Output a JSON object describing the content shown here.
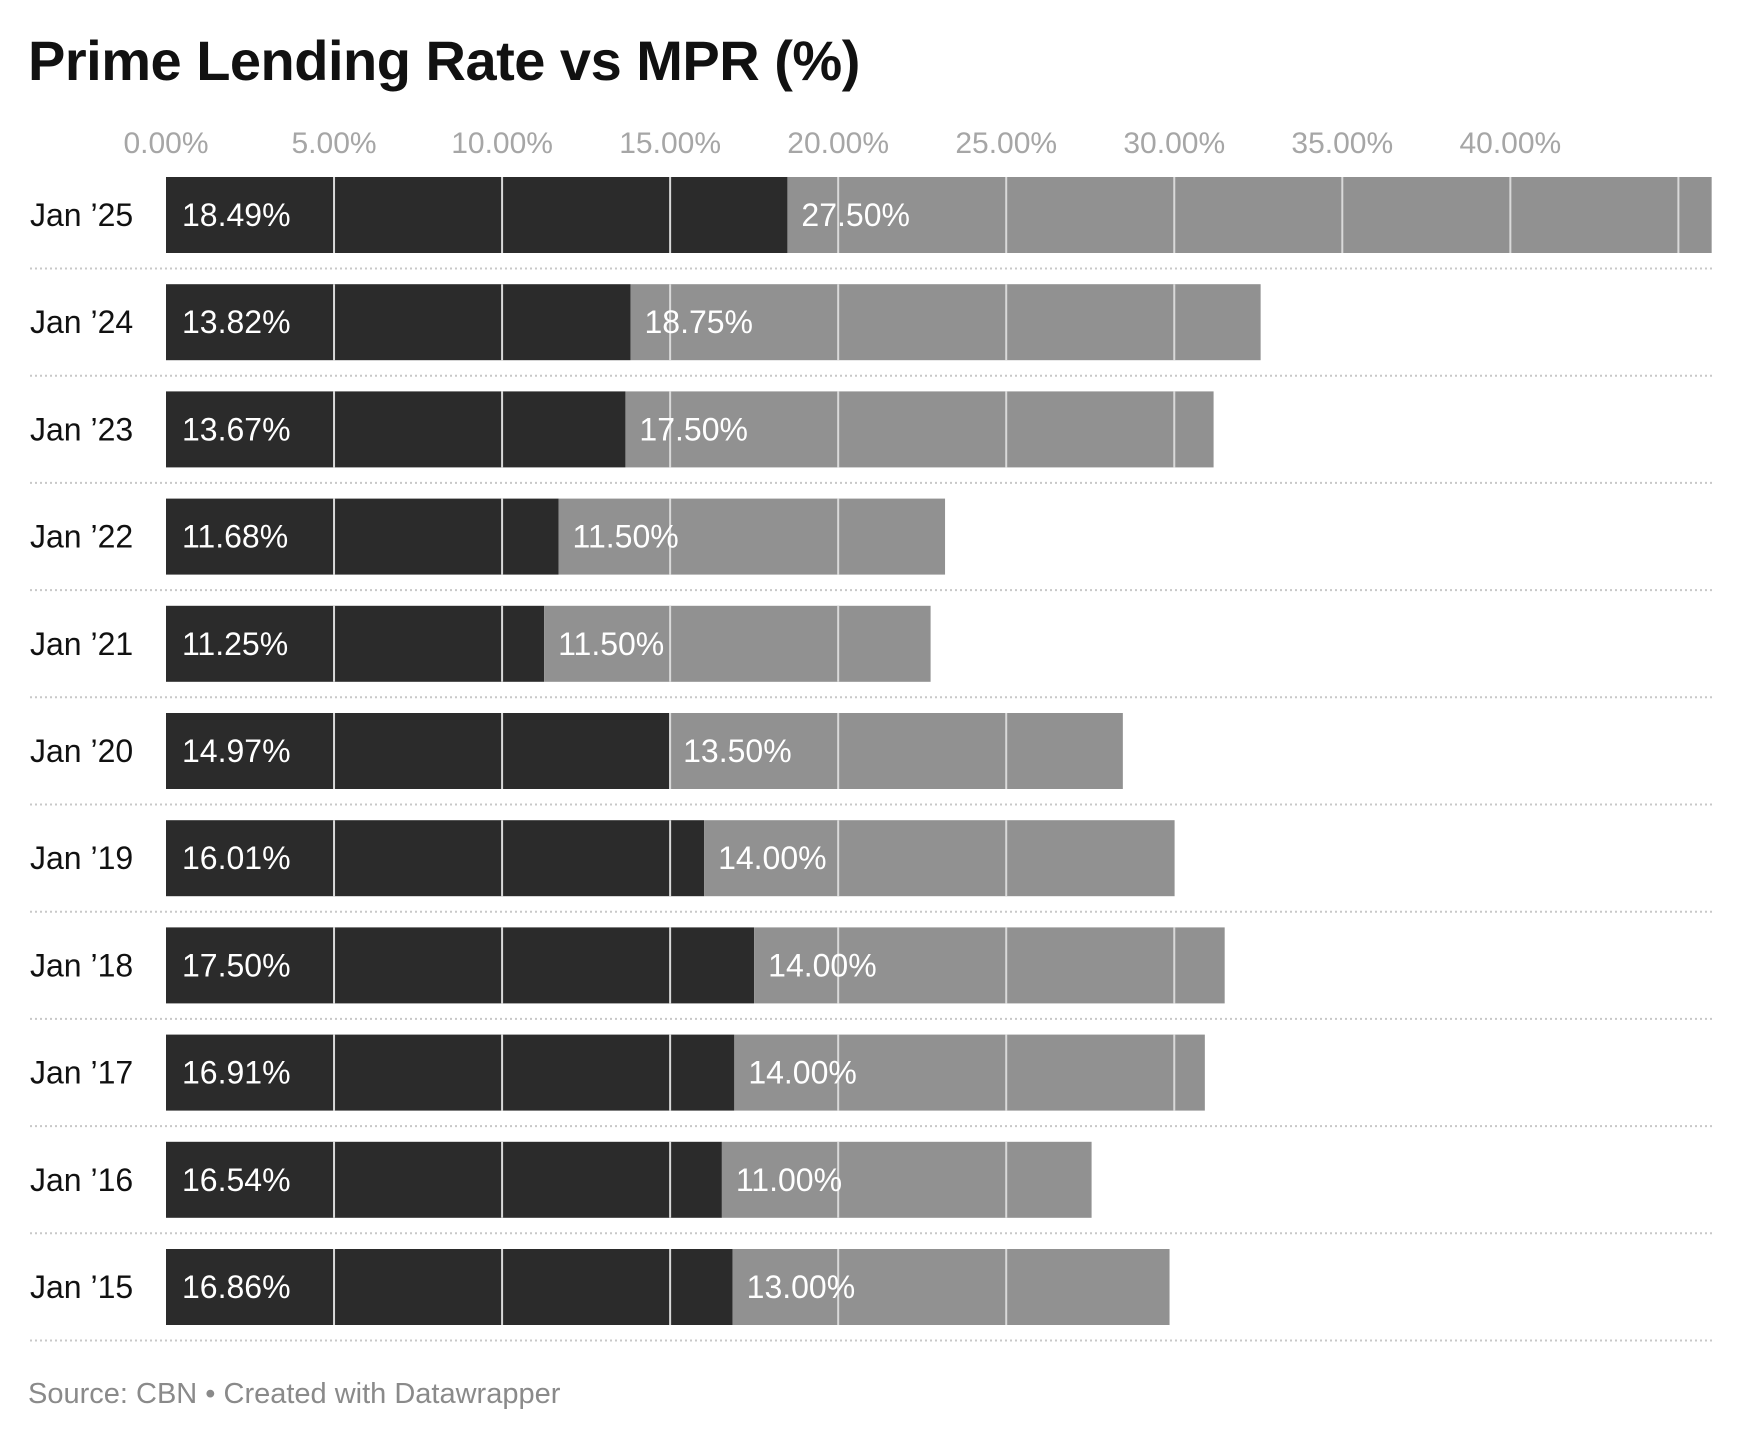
{
  "chart_data": {
    "type": "bar",
    "stacked": true,
    "orientation": "horizontal",
    "title": "Prime Lending Rate vs MPR (%)",
    "source": "Source: CBN • Created with Datawrapper",
    "x_ticks": [
      "0.00%",
      "5.00%",
      "10.00%",
      "15.00%",
      "20.00%",
      "25.00%",
      "30.00%",
      "35.00%",
      "40.00%"
    ],
    "x_tick_values": [
      0,
      5,
      10,
      15,
      20,
      25,
      30,
      35,
      40
    ],
    "xlim": [
      0,
      46
    ],
    "categories": [
      "Jan ’25",
      "Jan ’24",
      "Jan ’23",
      "Jan ’22",
      "Jan ’21",
      "Jan ’20",
      "Jan ’19",
      "Jan ’18",
      "Jan ’17",
      "Jan ’16",
      "Jan ’15"
    ],
    "series": [
      {
        "name": "Prime Lending Rate",
        "color": "#2b2b2b",
        "values": [
          18.49,
          13.82,
          13.67,
          11.68,
          11.25,
          14.97,
          16.01,
          17.5,
          16.91,
          16.54,
          16.86
        ],
        "labels": [
          "18.49%",
          "13.82%",
          "13.67%",
          "11.68%",
          "11.25%",
          "14.97%",
          "16.01%",
          "17.50%",
          "16.91%",
          "16.54%",
          "16.86%"
        ]
      },
      {
        "name": "MPR",
        "color": "#919191",
        "values": [
          27.5,
          18.75,
          17.5,
          11.5,
          11.5,
          13.5,
          14.0,
          14.0,
          14.0,
          11.0,
          13.0
        ],
        "labels": [
          "27.50%",
          "18.75%",
          "17.50%",
          "11.50%",
          "11.50%",
          "13.50%",
          "14.00%",
          "14.00%",
          "14.00%",
          "11.00%",
          "13.00%"
        ]
      }
    ]
  }
}
